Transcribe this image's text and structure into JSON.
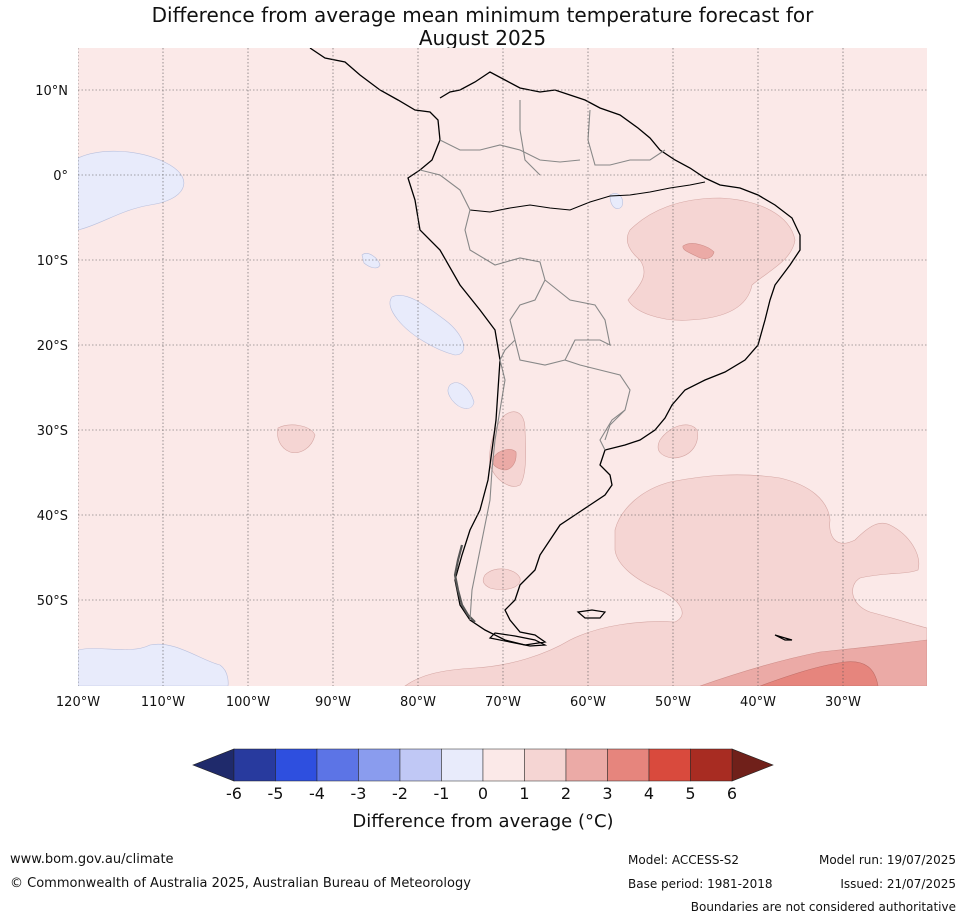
{
  "title": {
    "line1": "Difference from average mean minimum temperature forecast for",
    "line2": "August 2025"
  },
  "map": {
    "region": "South America",
    "lat_labels": [
      "10°N",
      "0°",
      "10°S",
      "20°S",
      "30°S",
      "40°S",
      "50°S"
    ],
    "lon_labels": [
      "120°W",
      "110°W",
      "100°W",
      "90°W",
      "80°W",
      "70°W",
      "60°W",
      "50°W",
      "40°W",
      "30°W"
    ],
    "background_category": "0 to 1",
    "anomaly_areas": [
      {
        "category": "1 to 2",
        "location": "northeast Brazil"
      },
      {
        "category": "2 to 3",
        "location": "northeast Brazil"
      },
      {
        "category": "1 to 2",
        "location": "western Argentina"
      },
      {
        "category": "2 to 3",
        "location": "western Argentina"
      },
      {
        "category": "1 to 2",
        "location": "South Atlantic"
      },
      {
        "category": "2 to 3",
        "location": "far South Atlantic"
      },
      {
        "category": "3 to 4",
        "location": "far South Atlantic"
      },
      {
        "category": "-1 to 0",
        "location": "eastern Pacific"
      }
    ]
  },
  "colorbar": {
    "ticks": [
      "-6",
      "-5",
      "-4",
      "-3",
      "-2",
      "-1",
      "0",
      "1",
      "2",
      "3",
      "4",
      "5",
      "6"
    ],
    "colors": [
      "#283a9e",
      "#2e4fdf",
      "#5c74e6",
      "#8a9cee",
      "#c0c8f5",
      "#e8ebfb",
      "#fbe9e8",
      "#f5d5d3",
      "#ebaaa6",
      "#e6857d",
      "#d94a3d",
      "#a82c22"
    ],
    "low_extend_color": "#1f2a6b",
    "high_extend_color": "#70201a",
    "label": "Difference from average (°C)"
  },
  "footer": {
    "website": "www.bom.gov.au/climate",
    "copyright": "© Commonwealth of Australia 2025, Australian Bureau of Meteorology",
    "model": "Model: ACCESS-S2",
    "base_period": "Base period: 1981-2018",
    "model_run": "Model run: 19/07/2025",
    "issued": "Issued: 21/07/2025",
    "disclaimer": "Boundaries are not considered authoritative"
  }
}
